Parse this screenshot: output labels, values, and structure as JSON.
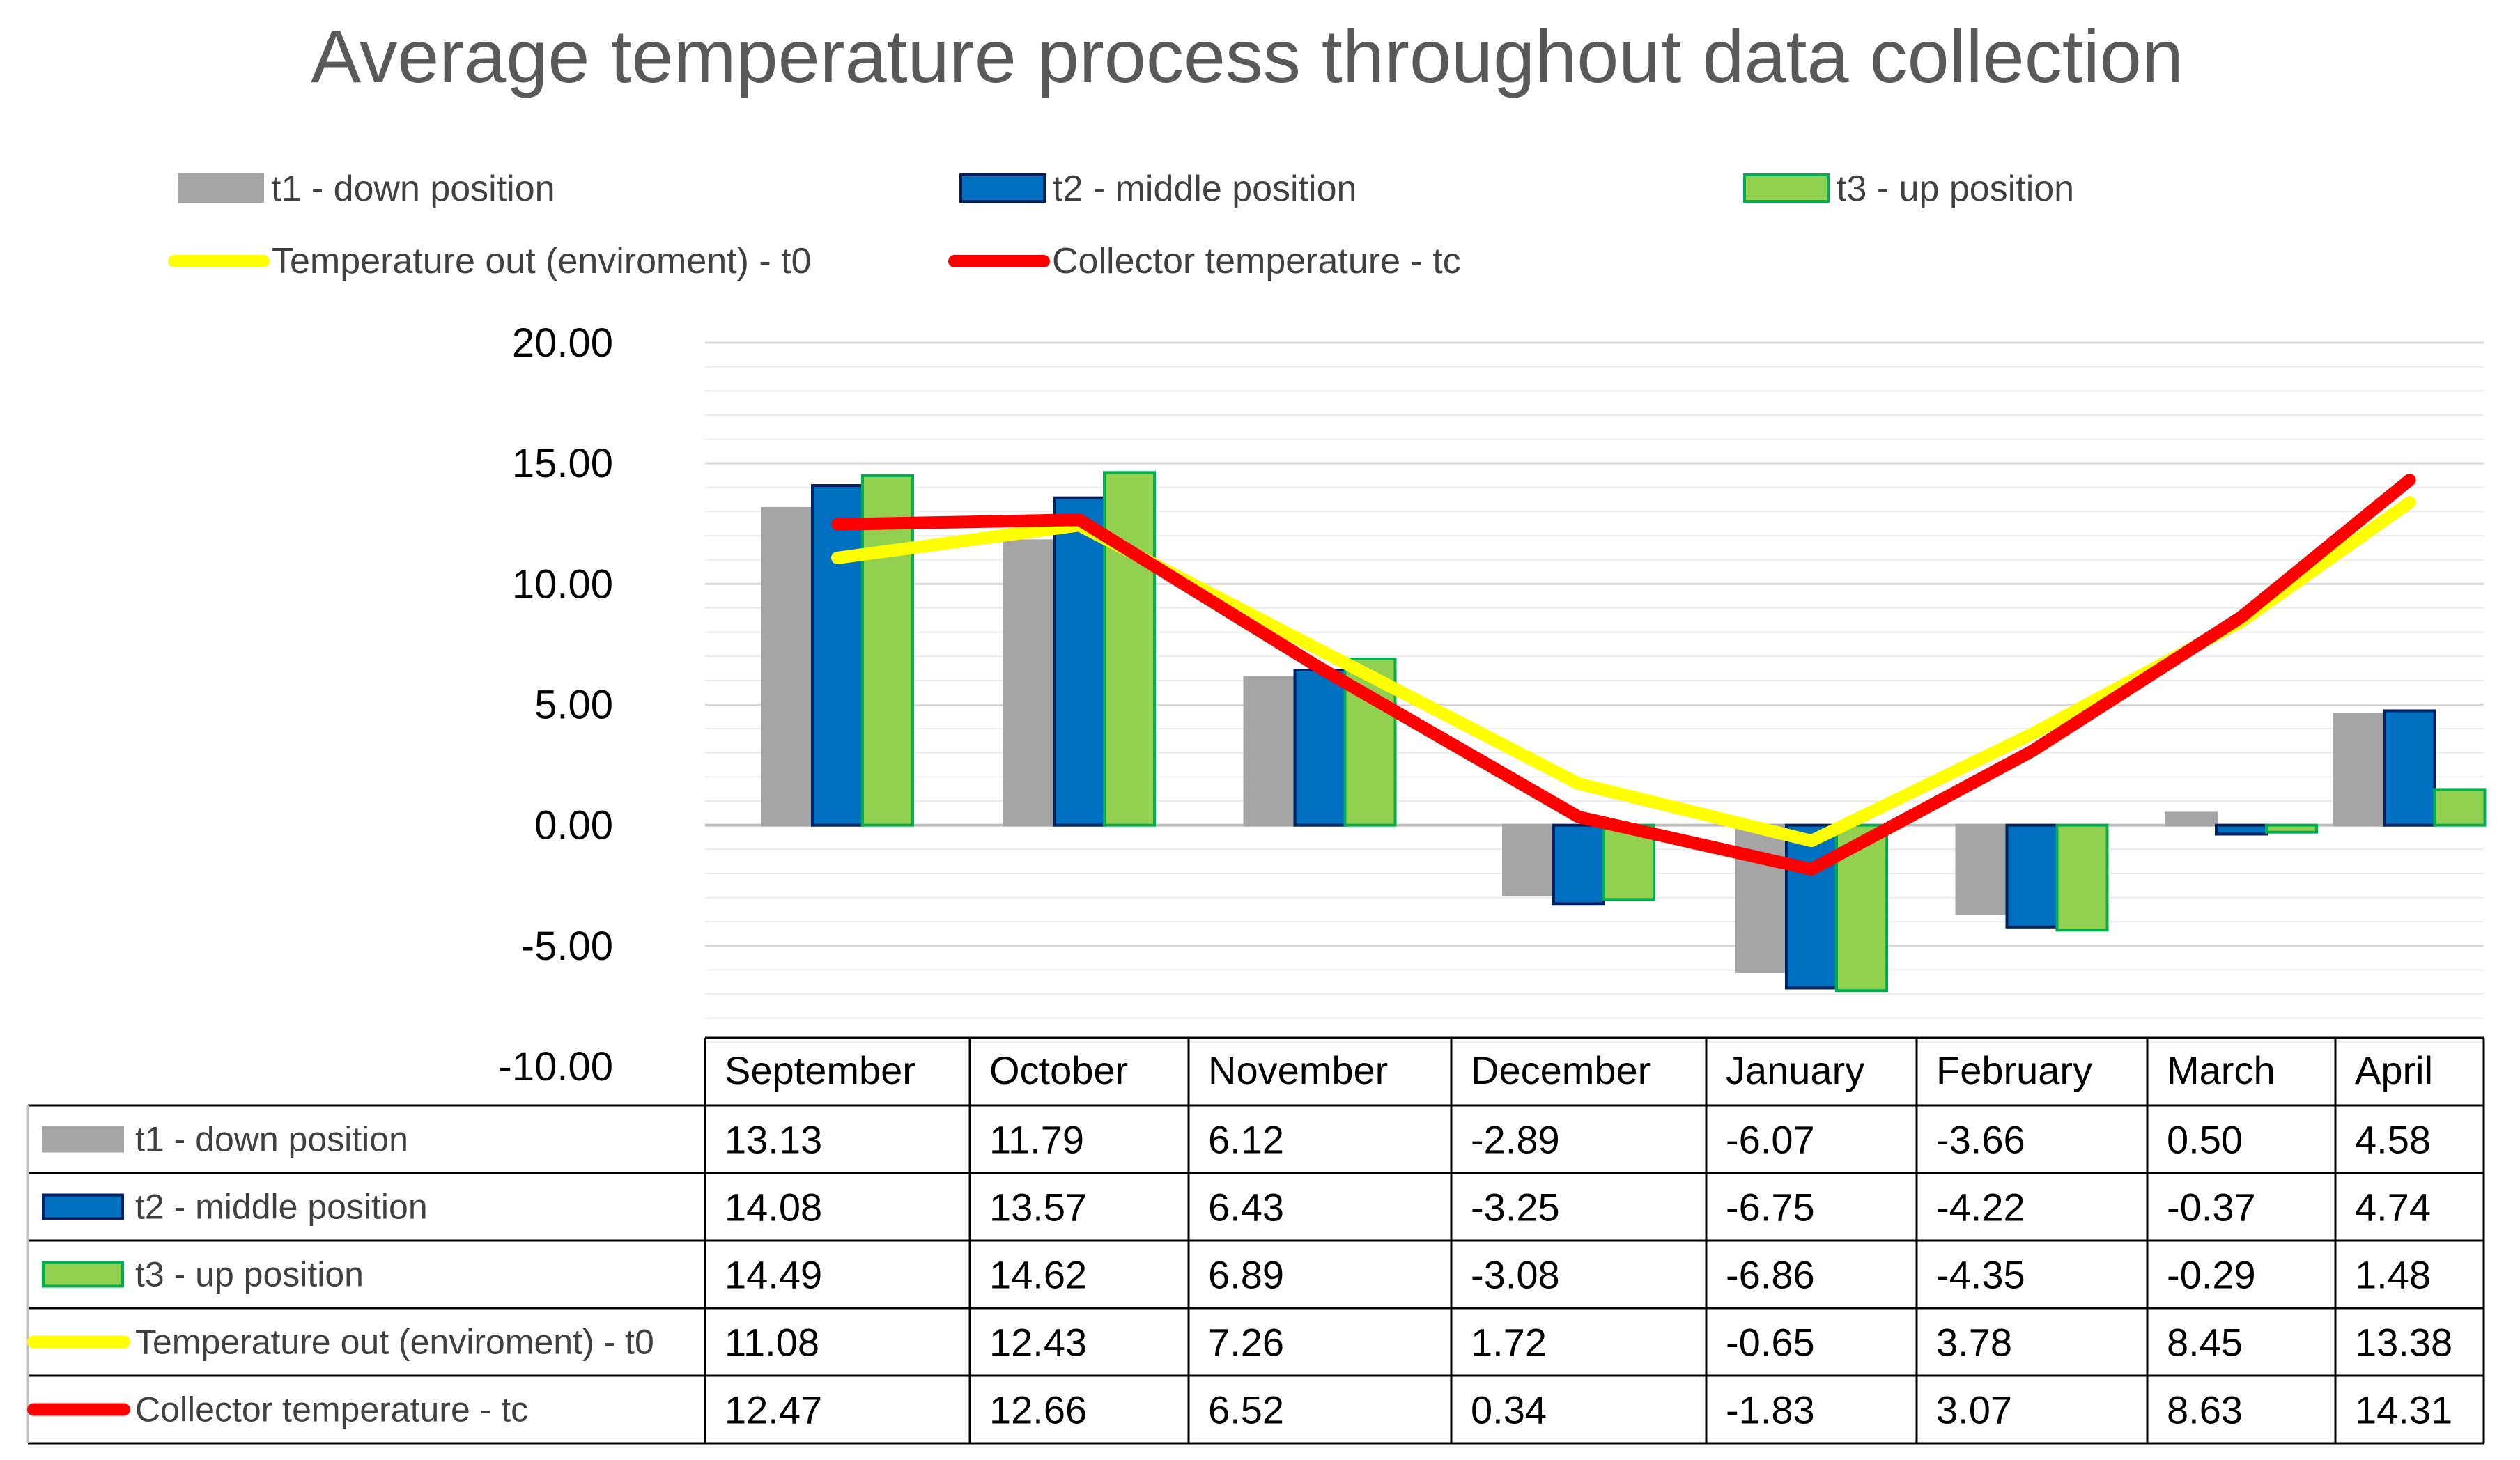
{
  "chart_data": {
    "type": "bar",
    "title": "Average temperature process throughout data collection",
    "categories": [
      "September",
      "October",
      "November",
      "December",
      "January",
      "February",
      "March",
      "April"
    ],
    "ylim": [
      -10,
      20
    ],
    "ytick_step": 5,
    "yticks": [
      "20.00",
      "15.00",
      "10.00",
      "5.00",
      "0.00",
      "-5.00",
      "-10.00"
    ],
    "grid": true,
    "legend_position": "top",
    "series": [
      {
        "name": "t1 - down position",
        "kind": "bar",
        "color": "#a5a5a5",
        "border": "#a5a5a5",
        "values": [
          13.13,
          11.79,
          6.12,
          -2.89,
          -6.07,
          -3.66,
          0.5,
          4.58
        ],
        "labels": [
          "13.13",
          "11.79",
          "6.12",
          "-2.89",
          "-6.07",
          "-3.66",
          "0.50",
          "4.58"
        ]
      },
      {
        "name": "t2 - middle position",
        "kind": "bar",
        "color": "#0070c0",
        "border": "#002060",
        "values": [
          14.08,
          13.57,
          6.43,
          -3.25,
          -6.75,
          -4.22,
          -0.37,
          4.74
        ],
        "labels": [
          "14.08",
          "13.57",
          "6.43",
          "-3.25",
          "-6.75",
          "-4.22",
          "-0.37",
          "4.74"
        ]
      },
      {
        "name": "t3 - up position",
        "kind": "bar",
        "color": "#92d050",
        "border": "#00b050",
        "values": [
          14.49,
          14.62,
          6.89,
          -3.08,
          -6.86,
          -4.35,
          -0.29,
          1.48
        ],
        "labels": [
          "14.49",
          "14.62",
          "6.89",
          "-3.08",
          "-6.86",
          "-4.35",
          "-0.29",
          "1.48"
        ]
      },
      {
        "name": "Temperature out (enviroment) - t0",
        "kind": "line",
        "color": "#ffff00",
        "values": [
          11.08,
          12.43,
          7.26,
          1.72,
          -0.65,
          3.78,
          8.45,
          13.38
        ],
        "labels": [
          "11.08",
          "12.43",
          "7.26",
          "1.72",
          "-0.65",
          "3.78",
          "8.45",
          "13.38"
        ]
      },
      {
        "name": "Collector temperature - tc",
        "kind": "line",
        "color": "#ff0000",
        "values": [
          12.47,
          12.66,
          6.52,
          0.34,
          -1.83,
          3.07,
          8.63,
          14.31
        ],
        "labels": [
          "12.47",
          "12.66",
          "6.52",
          "0.34",
          "-1.83",
          "3.07",
          "8.63",
          "14.31"
        ]
      }
    ]
  }
}
